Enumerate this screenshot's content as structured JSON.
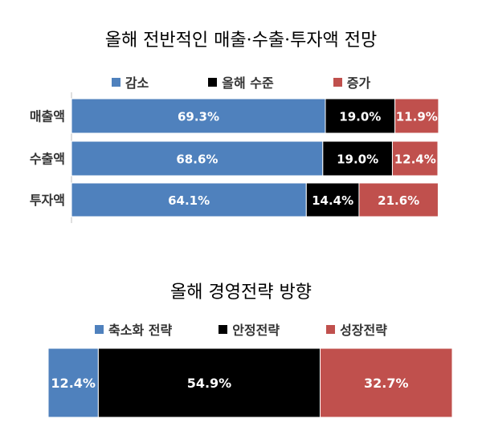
{
  "chart_data": [
    {
      "type": "bar",
      "orientation": "horizontal",
      "stacked": true,
      "title": "올해 전반적인 매출·수출·투자액 전망",
      "categories": [
        "매출액",
        "수출액",
        "투자액"
      ],
      "series": [
        {
          "name": "감소",
          "color": "#4f81bd",
          "values": [
            69.3,
            68.6,
            64.1
          ],
          "labels": [
            "69.3%",
            "68.6%",
            "64.1%"
          ]
        },
        {
          "name": "올해 수준",
          "color": "#000000",
          "values": [
            19.0,
            19.0,
            14.4
          ],
          "labels": [
            "19.0%",
            "19.0%",
            "14.4%"
          ]
        },
        {
          "name": "증가",
          "color": "#c0504d",
          "values": [
            11.9,
            12.4,
            21.6
          ],
          "labels": [
            "11.9%",
            "12.4%",
            "21.6%"
          ]
        }
      ],
      "xlim": [
        0,
        100
      ],
      "legend": "top",
      "grid": false
    },
    {
      "type": "bar",
      "orientation": "horizontal",
      "stacked": true,
      "title": "올해 경영전략 방향",
      "categories": [
        ""
      ],
      "series": [
        {
          "name": "축소화 전략",
          "color": "#4f81bd",
          "values": [
            12.4
          ],
          "labels": [
            "12.4%"
          ]
        },
        {
          "name": "안정전략",
          "color": "#000000",
          "values": [
            54.9
          ],
          "labels": [
            "54.9%"
          ]
        },
        {
          "name": "성장전략",
          "color": "#c0504d",
          "values": [
            32.7
          ],
          "labels": [
            "32.7%"
          ]
        }
      ],
      "xlim": [
        0,
        100
      ],
      "legend": "top",
      "grid": false
    }
  ]
}
